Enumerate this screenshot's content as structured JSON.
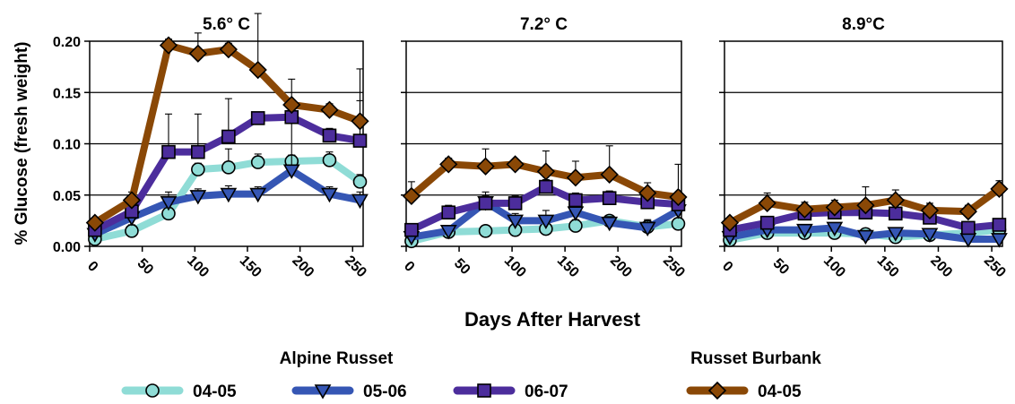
{
  "chart_data": {
    "type": "line",
    "ylabel": "% Glucose (fresh weight)",
    "xlabel": "Days After Harvest",
    "xlim": [
      0,
      260
    ],
    "ylim": [
      0,
      0.2
    ],
    "xticks": [
      "0",
      "50",
      "100",
      "150",
      "200",
      "250"
    ],
    "yticks": [
      "0.00",
      "0.05",
      "0.10",
      "0.15",
      "0.20"
    ],
    "grid": "horizontal",
    "legend_groups": [
      {
        "title": "Alpine Russet",
        "entries": [
          "04-05",
          "05-06",
          "06-07"
        ]
      },
      {
        "title": "Russet Burbank",
        "entries": [
          "04-05"
        ]
      }
    ],
    "series_style": [
      {
        "group": "Alpine Russet",
        "name": "04-05",
        "color": "#8fdcd6",
        "marker": "circle"
      },
      {
        "group": "Alpine Russet",
        "name": "05-06",
        "color": "#3556b4",
        "marker": "triangle-down"
      },
      {
        "group": "Alpine Russet",
        "name": "06-07",
        "color": "#4c2d9c",
        "marker": "square"
      },
      {
        "group": "Russet Burbank",
        "name": "04-05",
        "color": "#8a4806",
        "marker": "diamond"
      }
    ],
    "panels": [
      {
        "title": "5.6° C",
        "series": [
          {
            "x": [
              5,
              40,
              75,
              103,
              132,
              160,
              192,
              228,
              257
            ],
            "y": [
              0.007,
              0.015,
              0.032,
              0.075,
              0.077,
              0.082,
              0.083,
              0.084,
              0.063
            ],
            "err": [
              0.005,
              0.006,
              0.006,
              0.006,
              0.018,
              0.008,
              0.006,
              0.008,
              0.007
            ]
          },
          {
            "x": [
              5,
              40,
              75,
              103,
              132,
              160,
              192,
              228,
              257
            ],
            "y": [
              0.012,
              0.028,
              0.043,
              0.049,
              0.051,
              0.051,
              0.074,
              0.051,
              0.045
            ],
            "err": [
              0.005,
              0.008,
              0.01,
              0.007,
              0.008,
              0.007,
              0.047,
              0.007,
              0.008
            ]
          },
          {
            "x": [
              5,
              40,
              75,
              103,
              132,
              160,
              192,
              228,
              257
            ],
            "y": [
              0.016,
              0.034,
              0.092,
              0.092,
              0.107,
              0.125,
              0.126,
              0.108,
              0.103
            ],
            "err": [
              0.005,
              0.007,
              0.037,
              0.037,
              0.037,
              0.005,
              0.037,
              0.007,
              0.07
            ]
          },
          {
            "x": [
              5,
              40,
              75,
              103,
              132,
              160,
              192,
              228,
              257
            ],
            "y": [
              0.023,
              0.045,
              0.196,
              0.188,
              0.192,
              0.172,
              0.138,
              0.133,
              0.122
            ],
            "err": [
              0.005,
              0.008,
              0.006,
              0.02,
              0.006,
              0.055,
              0.005,
              0.006,
              0.02
            ]
          }
        ]
      },
      {
        "title": "7.2° C",
        "series": [
          {
            "x": [
              5,
              40,
              75,
              103,
              132,
              160,
              192,
              228,
              257
            ],
            "y": [
              0.005,
              0.014,
              0.015,
              0.016,
              0.017,
              0.02,
              0.025,
              0.019,
              0.022
            ],
            "err": [
              0.003,
              0.004,
              0.004,
              0.006,
              0.004,
              0.006,
              0.005,
              0.006,
              0.004
            ]
          },
          {
            "x": [
              5,
              40,
              75,
              103,
              132,
              160,
              192,
              228,
              257
            ],
            "y": [
              0.009,
              0.015,
              0.043,
              0.025,
              0.025,
              0.033,
              0.023,
              0.018,
              0.035
            ],
            "err": [
              0.003,
              0.005,
              0.01,
              0.007,
              0.01,
              0.008,
              0.006,
              0.008,
              0.01
            ]
          },
          {
            "x": [
              5,
              40,
              75,
              103,
              132,
              160,
              192,
              228,
              257
            ],
            "y": [
              0.016,
              0.033,
              0.042,
              0.042,
              0.058,
              0.045,
              0.047,
              0.043,
              0.041
            ],
            "err": [
              0.005,
              0.007,
              0.007,
              0.007,
              0.007,
              0.007,
              0.007,
              0.007,
              0.01
            ]
          },
          {
            "x": [
              5,
              40,
              75,
              103,
              132,
              160,
              192,
              228,
              257
            ],
            "y": [
              0.049,
              0.08,
              0.078,
              0.08,
              0.073,
              0.067,
              0.07,
              0.052,
              0.048
            ],
            "err": [
              0.014,
              0.006,
              0.017,
              0.004,
              0.02,
              0.016,
              0.028,
              0.01,
              0.032
            ]
          }
        ]
      },
      {
        "title": "8.9°C",
        "series": [
          {
            "x": [
              5,
              40,
              75,
              103,
              132,
              160,
              192,
              228,
              257
            ],
            "y": [
              0.006,
              0.013,
              0.013,
              0.013,
              0.012,
              0.009,
              0.011,
              0.013,
              0.016
            ],
            "err": [
              0.003,
              0.003,
              0.003,
              0.003,
              0.004,
              0.003,
              0.004,
              0.003,
              0.003
            ]
          },
          {
            "x": [
              5,
              40,
              75,
              103,
              132,
              160,
              192,
              228,
              257
            ],
            "y": [
              0.009,
              0.016,
              0.016,
              0.018,
              0.01,
              0.013,
              0.012,
              0.007,
              0.007
            ],
            "err": [
              0.003,
              0.004,
              0.004,
              0.004,
              0.004,
              0.004,
              0.004,
              0.004,
              0.004
            ]
          },
          {
            "x": [
              5,
              40,
              75,
              103,
              132,
              160,
              192,
              228,
              257
            ],
            "y": [
              0.016,
              0.023,
              0.032,
              0.033,
              0.033,
              0.032,
              0.028,
              0.018,
              0.021
            ],
            "err": [
              0.004,
              0.004,
              0.006,
              0.006,
              0.006,
              0.006,
              0.006,
              0.005,
              0.005
            ]
          },
          {
            "x": [
              5,
              40,
              75,
              103,
              132,
              160,
              192,
              228,
              257
            ],
            "y": [
              0.023,
              0.042,
              0.036,
              0.038,
              0.04,
              0.045,
              0.035,
              0.034,
              0.056
            ],
            "err": [
              0.004,
              0.01,
              0.007,
              0.007,
              0.018,
              0.01,
              0.007,
              0.006,
              0.008
            ]
          }
        ]
      }
    ]
  }
}
